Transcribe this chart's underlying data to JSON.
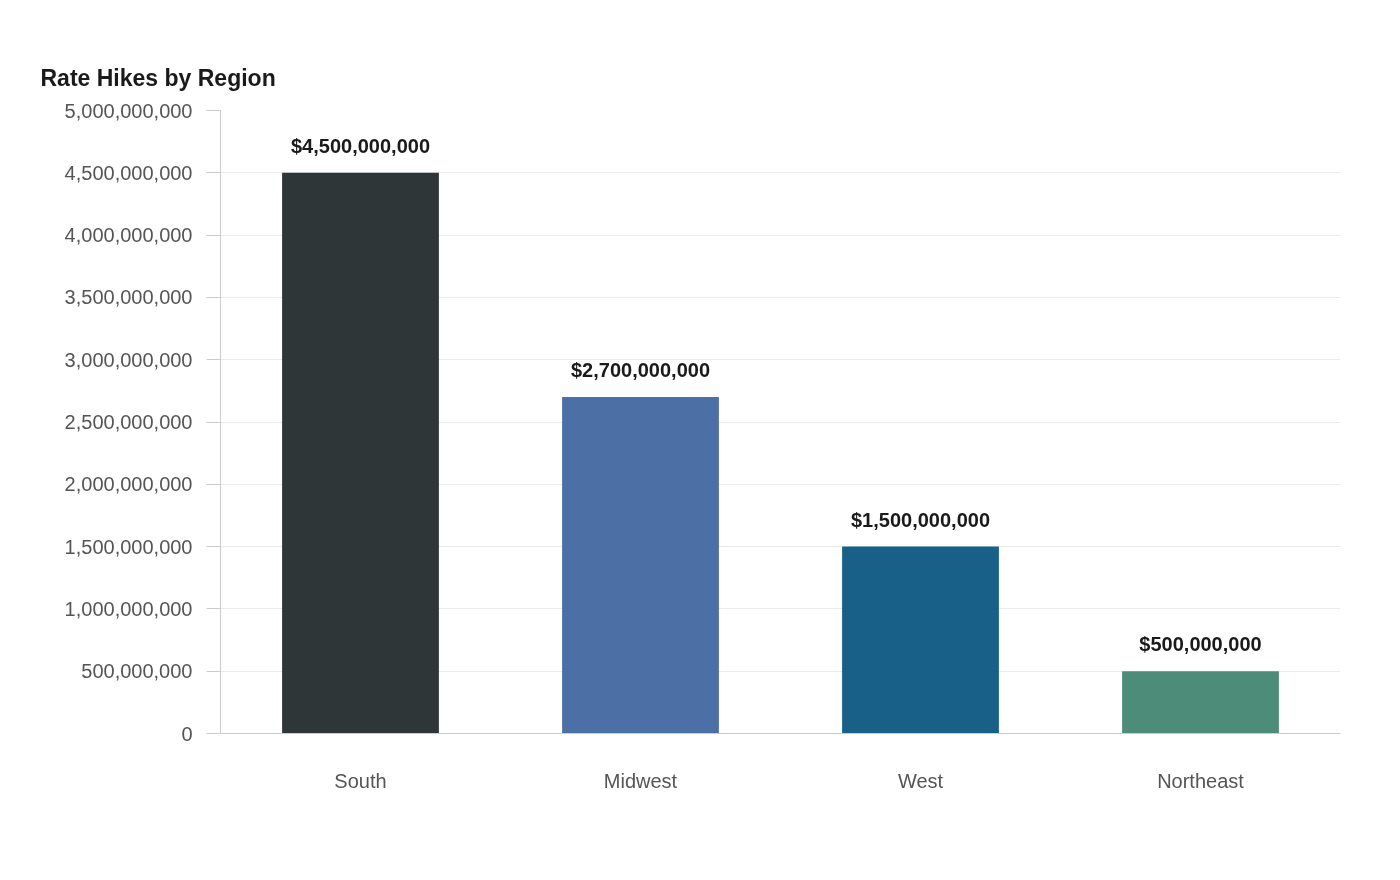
{
  "chart_data": {
    "type": "bar",
    "title": "Rate Hikes by Region",
    "categories": [
      "South",
      "Midwest",
      "West",
      "Northeast"
    ],
    "values": [
      4500000000,
      2700000000,
      1500000000,
      500000000
    ],
    "colors": [
      "#2e3638",
      "#4c6fa5",
      "#196089",
      "#4d8c78"
    ],
    "value_labels": [
      "$4,500,000,000",
      "$2,700,000,000",
      "$1,500,000,000",
      "$500,000,000"
    ],
    "ylim": [
      0,
      5000000000
    ],
    "yticks": [
      {
        "value": 0,
        "label": "0"
      },
      {
        "value": 500000000,
        "label": "500,000,000"
      },
      {
        "value": 1000000000,
        "label": "1,000,000,000"
      },
      {
        "value": 1500000000,
        "label": "1,500,000,000"
      },
      {
        "value": 2000000000,
        "label": "2,000,000,000"
      },
      {
        "value": 2500000000,
        "label": "2,500,000,000"
      },
      {
        "value": 3000000000,
        "label": "3,000,000,000"
      },
      {
        "value": 3500000000,
        "label": "3,500,000,000"
      },
      {
        "value": 4000000000,
        "label": "4,000,000,000"
      },
      {
        "value": 4500000000,
        "label": "4,500,000,000"
      },
      {
        "value": 5000000000,
        "label": "5,000,000,000"
      }
    ],
    "grid": "y"
  }
}
